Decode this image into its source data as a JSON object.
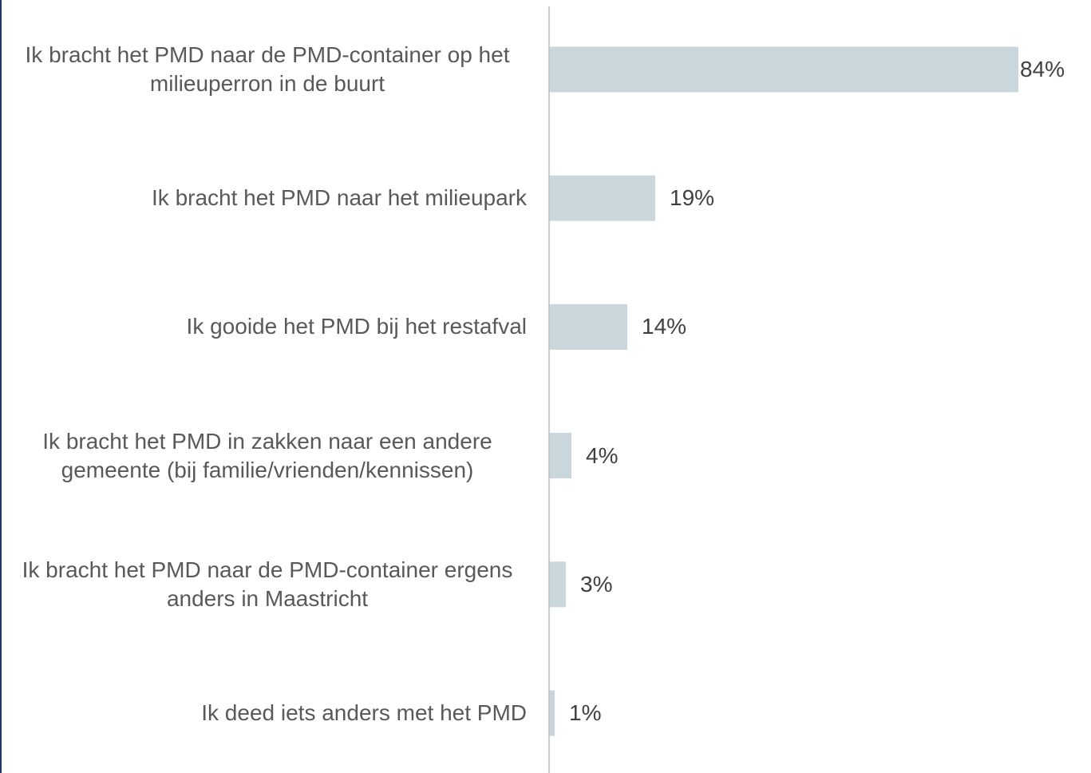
{
  "chart_data": {
    "type": "bar",
    "orientation": "horizontal",
    "categories": [
      "Ik bracht het PMD naar de PMD-container op het milieuperron in de buurt",
      "Ik bracht het PMD naar het milieupark",
      "Ik gooide het PMD bij het restafval",
      "Ik bracht het PMD in zakken naar een andere gemeente (bij familie/vrienden/kennissen)",
      "Ik bracht het PMD naar de PMD-container ergens anders in Maastricht",
      "Ik deed iets anders met het PMD"
    ],
    "values": [
      84,
      19,
      14,
      4,
      3,
      1
    ],
    "value_labels": [
      "84%",
      "19%",
      "14%",
      "4%",
      "3%",
      "1%"
    ],
    "color": "#c9d6dc"
  }
}
